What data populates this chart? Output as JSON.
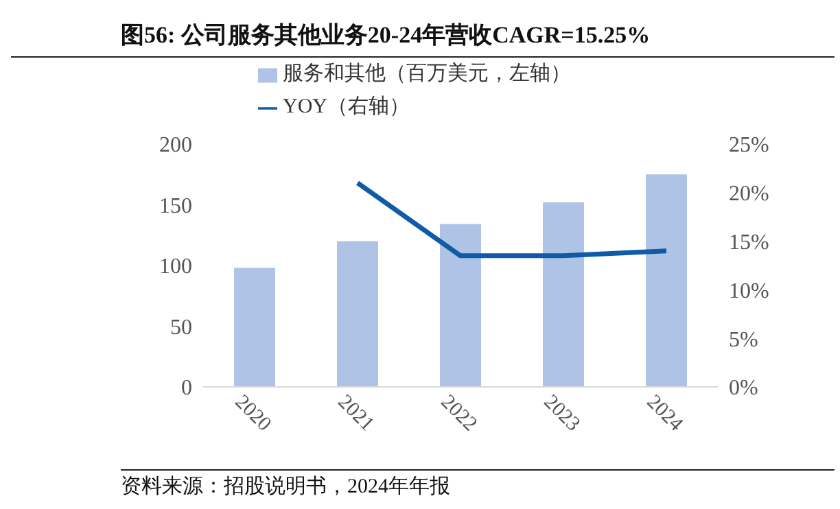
{
  "chart_data": {
    "type": "bar",
    "title": "图56:  公司服务其他业务20-24年营收CAGR=15.25%",
    "categories": [
      "2020",
      "2021",
      "2022",
      "2023",
      "2024"
    ],
    "series": [
      {
        "name": "服务和其他（百万美元，左轴）",
        "color": "#aec3e6",
        "values": [
          98,
          120,
          134,
          152,
          175
        ]
      },
      {
        "name": "YOY（右轴）",
        "type": "line",
        "axis": "y2",
        "color": "#0f5ba7",
        "values": [
          null,
          21,
          13.5,
          13.5,
          14
        ]
      }
    ],
    "ylim": [
      0,
      200
    ],
    "yticks": [
      0,
      50,
      100,
      150,
      200
    ],
    "y2lim": [
      0,
      25
    ],
    "y2ticks": [
      {
        "value": 0,
        "label": "0%"
      },
      {
        "value": 5,
        "label": "5%"
      },
      {
        "value": 10,
        "label": "10%"
      },
      {
        "value": 15,
        "label": "15%"
      },
      {
        "value": 20,
        "label": "20%"
      },
      {
        "value": 25,
        "label": "25%"
      }
    ],
    "legend": "top left",
    "grid": false,
    "marker": "none",
    "annotations": [
      "资料来源：招股说明书，2024年年报"
    ]
  }
}
